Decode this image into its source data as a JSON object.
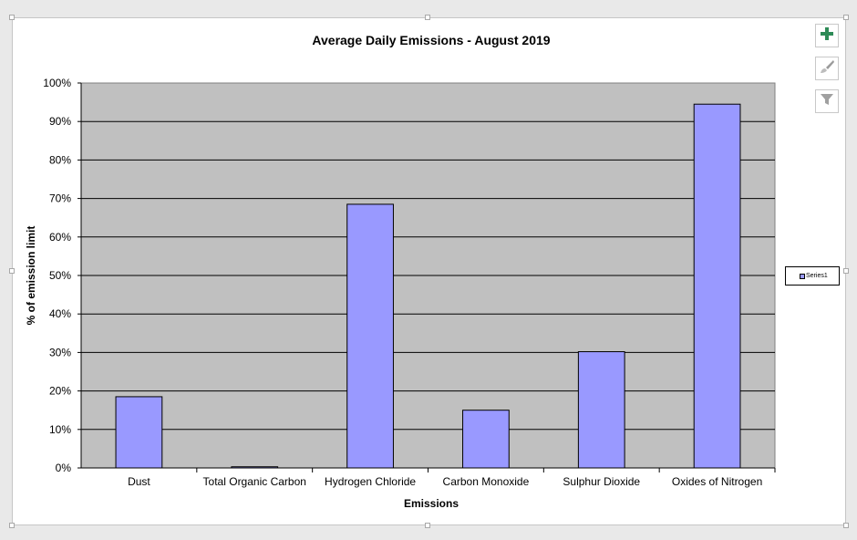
{
  "chart_data": {
    "type": "bar",
    "title": "Average Daily Emissions - August  2019",
    "xlabel": "Emissions",
    "ylabel": "% of emission limit",
    "categories": [
      "Dust",
      "Total Organic Carbon",
      "Hydrogen Chloride",
      "Carbon Monoxide",
      "Sulphur Dioxide",
      "Oxides of Nitrogen"
    ],
    "series": [
      {
        "name": "Series1",
        "values": [
          18.5,
          0.3,
          68.5,
          15,
          30.2,
          94.5
        ]
      }
    ],
    "ylim": [
      0,
      100
    ],
    "yticks": [
      "0%",
      "10%",
      "20%",
      "30%",
      "40%",
      "50%",
      "60%",
      "70%",
      "80%",
      "90%",
      "100%"
    ],
    "grid": true,
    "legend_position": "right",
    "colors": {
      "bar": "#9999ff",
      "plot_bg": "#c0c0c0",
      "gridline": "#000000"
    }
  },
  "toolbar": {
    "icons": [
      "plus-icon",
      "brush-icon",
      "filter-icon"
    ]
  }
}
